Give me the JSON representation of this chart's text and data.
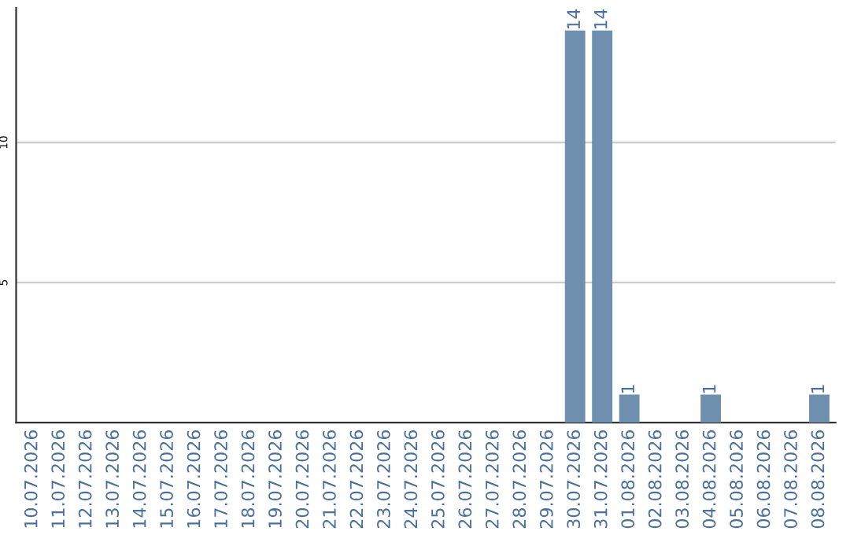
{
  "chart_data": {
    "type": "bar",
    "categories": [
      "10.07.2026",
      "11.07.2026",
      "12.07.2026",
      "13.07.2026",
      "14.07.2026",
      "15.07.2026",
      "16.07.2026",
      "17.07.2026",
      "18.07.2026",
      "19.07.2026",
      "20.07.2026",
      "21.07.2026",
      "22.07.2026",
      "23.07.2026",
      "24.07.2026",
      "25.07.2026",
      "26.07.2026",
      "27.07.2026",
      "28.07.2026",
      "29.07.2026",
      "30.07.2026",
      "31.07.2026",
      "01.08.2026",
      "02.08.2026",
      "03.08.2026",
      "04.08.2026",
      "05.08.2026",
      "06.08.2026",
      "07.08.2026",
      "08.08.2026"
    ],
    "values": [
      0,
      0,
      0,
      0,
      0,
      0,
      0,
      0,
      0,
      0,
      0,
      0,
      0,
      0,
      0,
      0,
      0,
      0,
      0,
      0,
      14,
      14,
      1,
      0,
      0,
      1,
      0,
      0,
      0,
      1
    ],
    "value_labels": [
      null,
      null,
      null,
      null,
      null,
      null,
      null,
      null,
      null,
      null,
      null,
      null,
      null,
      null,
      null,
      null,
      null,
      null,
      null,
      null,
      "14",
      "14",
      "1",
      null,
      null,
      "1",
      null,
      null,
      null,
      "1"
    ],
    "color": "#6f8fae",
    "ylim": [
      0,
      14.8
    ],
    "yticks": [
      5,
      10
    ],
    "grid": "y"
  }
}
